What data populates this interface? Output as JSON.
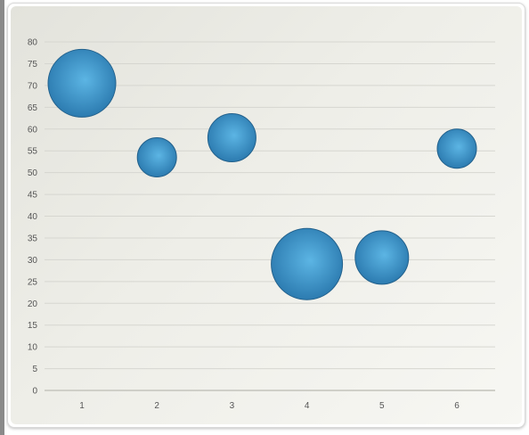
{
  "chart_data": {
    "type": "bubble",
    "title": "",
    "xlabel": "",
    "ylabel": "",
    "x_ticks": [
      "1",
      "2",
      "3",
      "4",
      "5",
      "6"
    ],
    "y_ticks": [
      "0",
      "5",
      "10",
      "15",
      "20",
      "25",
      "30",
      "35",
      "40",
      "45",
      "50",
      "55",
      "60",
      "65",
      "70",
      "75",
      "80"
    ],
    "ylim": [
      0,
      80
    ],
    "grid": true,
    "legend": "none",
    "series": [
      {
        "points": [
          {
            "x": 1,
            "y": 70.5,
            "size": 38
          },
          {
            "x": 2,
            "y": 53.5,
            "size": 22
          },
          {
            "x": 3,
            "y": 58,
            "size": 27
          },
          {
            "x": 4,
            "y": 29,
            "size": 40
          },
          {
            "x": 5,
            "y": 30.5,
            "size": 30
          },
          {
            "x": 6,
            "y": 55.5,
            "size": 22
          }
        ]
      }
    ],
    "colors": {
      "bubble_light": "#5cb5e4",
      "bubble_dark": "#2c7bb0",
      "bubble_edge": "#23618c",
      "grid": "#d6d6d0",
      "axis": "#cfcfc8"
    }
  }
}
